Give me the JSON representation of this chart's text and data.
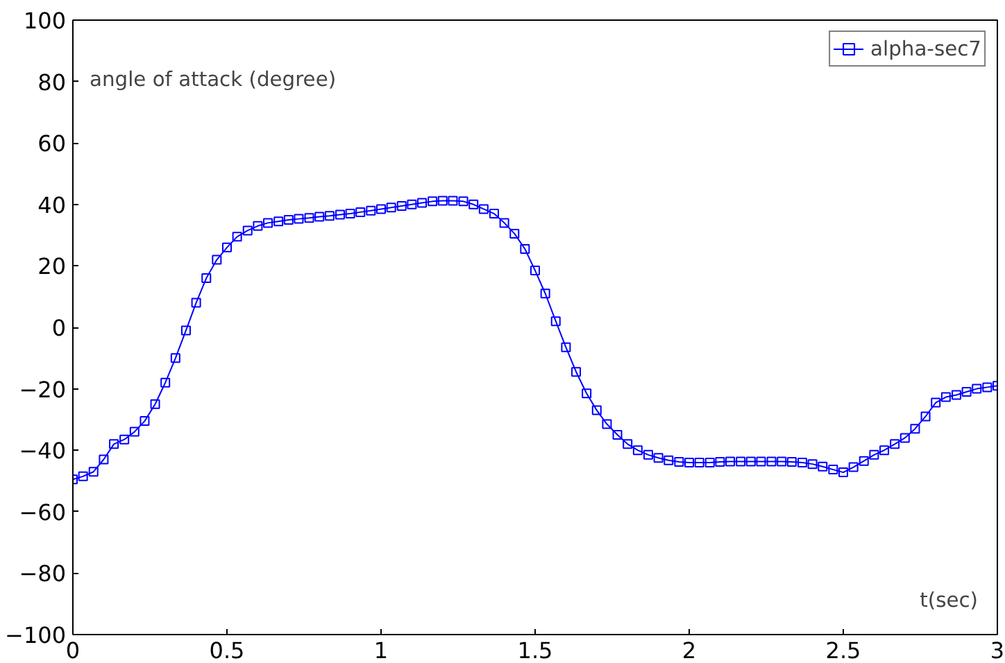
{
  "chart_data": {
    "type": "line",
    "xlabel": "t(sec)",
    "ylabel": "angle of attack (degree)",
    "x": [
      0,
      0.033,
      0.067,
      0.1,
      0.133,
      0.167,
      0.2,
      0.233,
      0.267,
      0.3,
      0.333,
      0.367,
      0.4,
      0.433,
      0.467,
      0.5,
      0.533,
      0.567,
      0.6,
      0.633,
      0.667,
      0.7,
      0.733,
      0.767,
      0.8,
      0.833,
      0.867,
      0.9,
      0.933,
      0.967,
      1.0,
      1.033,
      1.067,
      1.1,
      1.133,
      1.167,
      1.2,
      1.233,
      1.267,
      1.3,
      1.333,
      1.367,
      1.4,
      1.433,
      1.467,
      1.5,
      1.533,
      1.567,
      1.6,
      1.633,
      1.667,
      1.7,
      1.733,
      1.767,
      1.8,
      1.833,
      1.867,
      1.9,
      1.933,
      1.967,
      2.0,
      2.033,
      2.067,
      2.1,
      2.133,
      2.167,
      2.2,
      2.233,
      2.267,
      2.3,
      2.333,
      2.367,
      2.4,
      2.433,
      2.467,
      2.5,
      2.533,
      2.567,
      2.6,
      2.633,
      2.667,
      2.7,
      2.733,
      2.767,
      2.8,
      2.833,
      2.867,
      2.9,
      2.933,
      2.967,
      3.0
    ],
    "series": [
      {
        "name": "alpha-sec7",
        "color": "#0000ff",
        "values": [
          -49.5,
          -48.5,
          -47,
          -43,
          -38,
          -36.5,
          -34,
          -30.5,
          -25,
          -18,
          -10,
          -1,
          8,
          16,
          22,
          26,
          29.5,
          31.5,
          33,
          34,
          34.5,
          35,
          35.3,
          35.6,
          36,
          36.3,
          36.7,
          37,
          37.5,
          38,
          38.5,
          39,
          39.5,
          40,
          40.5,
          41,
          41.2,
          41.2,
          41,
          40,
          38.5,
          37,
          34,
          30.5,
          25.5,
          18.5,
          11,
          2,
          -6.5,
          -14.5,
          -21.5,
          -27,
          -31.5,
          -35,
          -38,
          -40,
          -41.5,
          -42.5,
          -43.3,
          -43.8,
          -44,
          -44,
          -44,
          -43.8,
          -43.7,
          -43.7,
          -43.7,
          -43.7,
          -43.7,
          -43.7,
          -43.8,
          -44,
          -44.5,
          -45.3,
          -46.3,
          -47.2,
          -45.5,
          -43.5,
          -41.5,
          -40,
          -38,
          -36,
          -33,
          -29,
          -24.5,
          -22.7,
          -22,
          -21,
          -20,
          -19.5,
          -19
        ]
      }
    ],
    "xlim": [
      0,
      3
    ],
    "ylim": [
      -100,
      100
    ],
    "xticks": [
      0,
      0.5,
      1,
      1.5,
      2,
      2.5,
      3
    ],
    "yticks": [
      -100,
      -80,
      -60,
      -40,
      -20,
      0,
      20,
      40,
      60,
      80,
      100
    ],
    "grid": false,
    "legend": "top right",
    "marker": "square",
    "line_style": "solid"
  }
}
